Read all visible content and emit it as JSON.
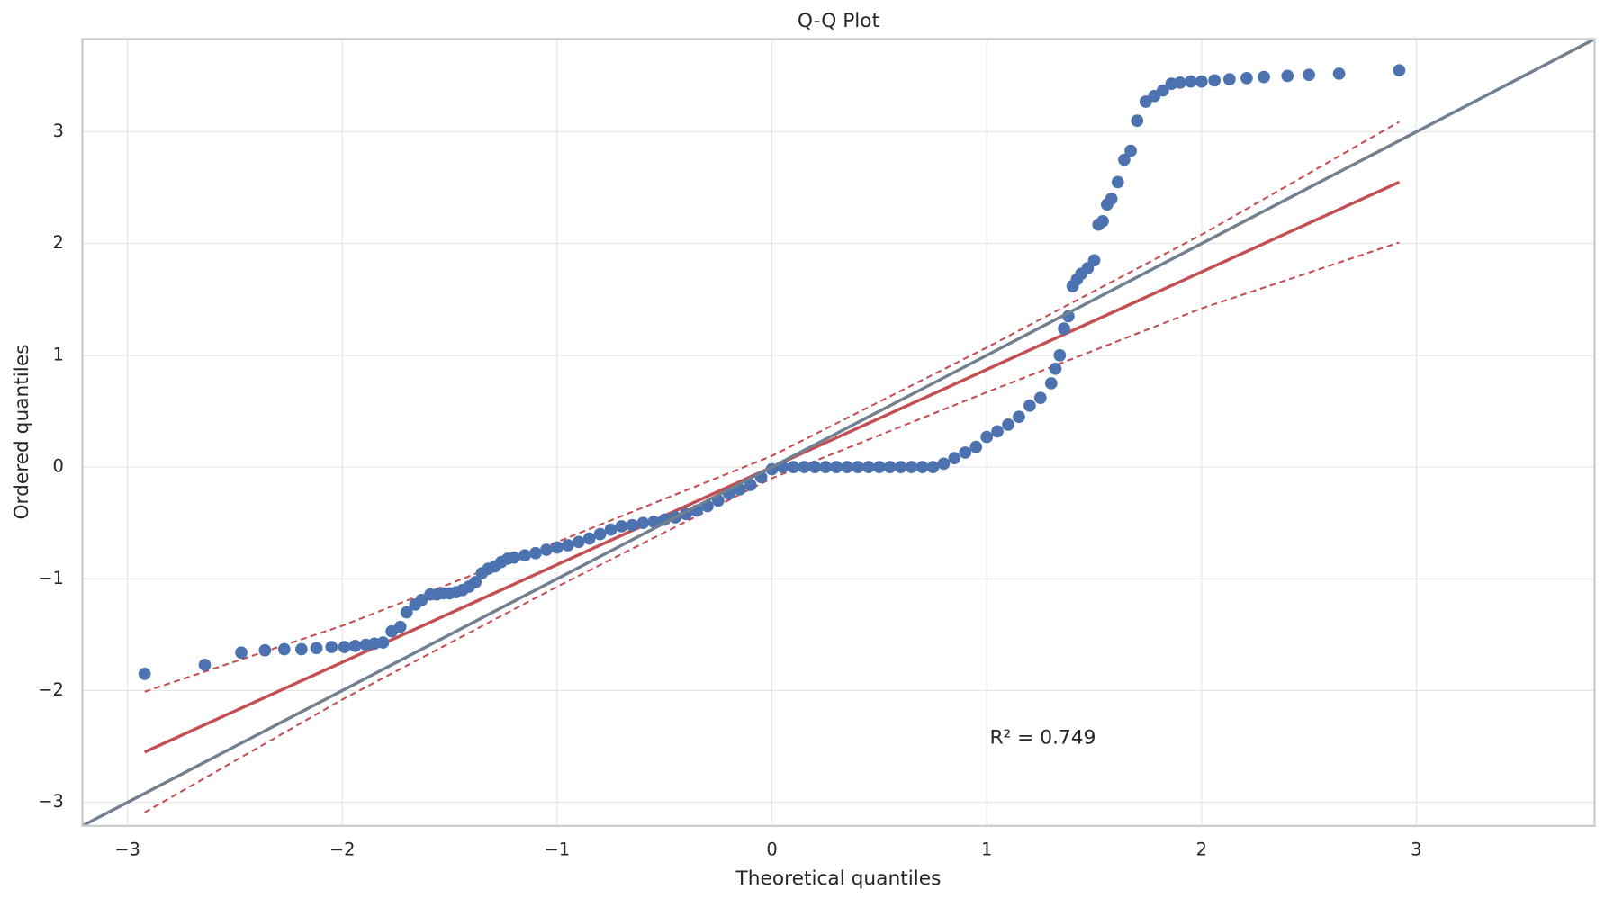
{
  "chart_data": {
    "type": "scatter",
    "title": "Q-Q Plot",
    "x_label": "Theoretical quantiles",
    "y_label": "Ordered quantiles",
    "annotation": "R² = 0.749",
    "grid": true,
    "xlim": [
      -3.21,
      3.83
    ],
    "ylim": [
      -3.21,
      3.83
    ],
    "xticks": [
      {
        "value": -3,
        "label": "−3"
      },
      {
        "value": -2,
        "label": "−2"
      },
      {
        "value": -1,
        "label": "−1"
      },
      0,
      1,
      2,
      3
    ],
    "yticks": [
      {
        "value": -3,
        "label": "−3"
      },
      {
        "value": -2,
        "label": "−2"
      },
      {
        "value": -1,
        "label": "−1"
      },
      0,
      1,
      2,
      3
    ],
    "series": [
      {
        "color": "#4c72b0",
        "x": [
          -2.92,
          -2.64,
          -2.47,
          -2.36,
          -2.27,
          -2.19,
          -2.12,
          -2.05,
          -1.99,
          -1.94,
          -1.89,
          -1.85,
          -1.81,
          -1.77,
          -1.73,
          -1.7,
          -1.66,
          -1.63,
          -1.59,
          -1.56,
          -1.53,
          -1.5,
          -1.47,
          -1.44,
          -1.41,
          -1.38,
          -1.35,
          -1.32,
          -1.29,
          -1.26,
          -1.23,
          -1.2,
          -1.15,
          -1.1,
          -1.05,
          -1.0,
          -0.95,
          -0.9,
          -0.85,
          -0.8,
          -0.75,
          -0.7,
          -0.65,
          -0.6,
          -0.55,
          -0.5,
          -0.45,
          -0.4,
          -0.35,
          -0.3,
          -0.25,
          -0.2,
          -0.15,
          -0.1,
          -0.05,
          0.0,
          0.05,
          0.1,
          0.15,
          0.2,
          0.25,
          0.3,
          0.35,
          0.4,
          0.45,
          0.5,
          0.55,
          0.6,
          0.65,
          0.7,
          0.75,
          0.8,
          0.85,
          0.9,
          0.95,
          1.0,
          1.05,
          1.1,
          1.15,
          1.2,
          1.25,
          1.3,
          1.32,
          1.34,
          1.36,
          1.38,
          1.4,
          1.42,
          1.44,
          1.47,
          1.5,
          1.52,
          1.54,
          1.56,
          1.58,
          1.61,
          1.64,
          1.67,
          1.7,
          1.74,
          1.78,
          1.82,
          1.86,
          1.9,
          1.95,
          2.0,
          2.06,
          2.13,
          2.21,
          2.29,
          2.4,
          2.5,
          2.64,
          2.92
        ],
        "y": [
          -1.85,
          -1.77,
          -1.66,
          -1.64,
          -1.63,
          -1.63,
          -1.62,
          -1.61,
          -1.61,
          -1.6,
          -1.59,
          -1.58,
          -1.57,
          -1.47,
          -1.43,
          -1.3,
          -1.23,
          -1.19,
          -1.14,
          -1.14,
          -1.13,
          -1.13,
          -1.12,
          -1.1,
          -1.07,
          -1.03,
          -0.95,
          -0.91,
          -0.89,
          -0.85,
          -0.82,
          -0.81,
          -0.79,
          -0.77,
          -0.74,
          -0.72,
          -0.7,
          -0.67,
          -0.64,
          -0.6,
          -0.56,
          -0.53,
          -0.52,
          -0.5,
          -0.49,
          -0.47,
          -0.45,
          -0.42,
          -0.39,
          -0.35,
          -0.3,
          -0.24,
          -0.2,
          -0.16,
          -0.09,
          -0.02,
          0,
          0,
          0,
          0,
          0,
          0,
          0,
          0,
          0,
          0,
          0,
          0,
          0,
          0,
          0,
          0.03,
          0.08,
          0.13,
          0.18,
          0.27,
          0.32,
          0.38,
          0.45,
          0.55,
          0.62,
          0.75,
          0.88,
          1.0,
          1.24,
          1.35,
          1.62,
          1.68,
          1.73,
          1.78,
          1.85,
          2.17,
          2.2,
          2.35,
          2.4,
          2.55,
          2.75,
          2.83,
          3.1,
          3.27,
          3.32,
          3.37,
          3.43,
          3.44,
          3.45,
          3.45,
          3.46,
          3.47,
          3.48,
          3.49,
          3.5,
          3.51,
          3.52,
          3.55
        ]
      }
    ],
    "lines": [
      {
        "color": "#708090",
        "style": "solid",
        "x": [
          -3.21,
          3.83
        ],
        "y": [
          -3.21,
          3.83
        ]
      },
      {
        "color": "#c44e52",
        "style": "solid",
        "x": [
          -2.92,
          2.92
        ],
        "y": [
          -2.55,
          2.55
        ]
      },
      {
        "color": "#c44e52",
        "style": "dashed",
        "x": [
          -2.92,
          -2,
          -1,
          0,
          1,
          2,
          2.92
        ],
        "y": [
          -2.01,
          -1.42,
          -0.67,
          0.1,
          1.07,
          2.08,
          3.09
        ]
      },
      {
        "color": "#c44e52",
        "style": "dashed",
        "x": [
          -2.92,
          -2,
          -1,
          0,
          1,
          2,
          2.92
        ],
        "y": [
          -3.09,
          -2.08,
          -1.07,
          -0.1,
          0.67,
          1.42,
          2.01
        ]
      }
    ]
  }
}
